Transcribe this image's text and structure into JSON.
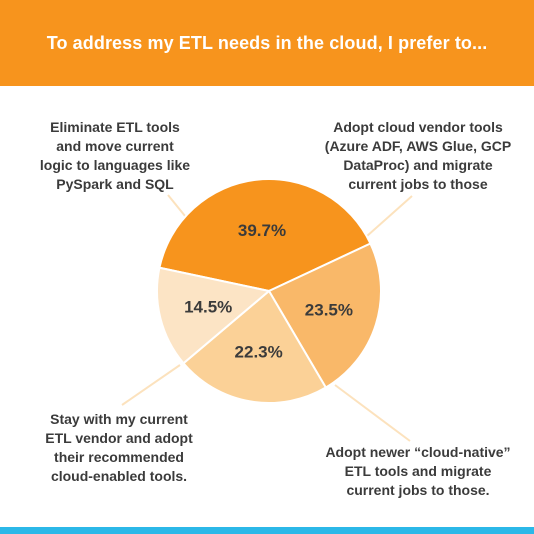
{
  "header": {
    "title": "To address my ETL needs in the cloud, I prefer to..."
  },
  "colors": {
    "header_bg": "#f7941d",
    "footer_band": "#2bb8e8",
    "leader_line": "#fce2bd",
    "pct_text": "#3b3b3b"
  },
  "chart_data": {
    "type": "pie",
    "title": "To address my ETL needs in the cloud, I prefer to...",
    "slices": [
      {
        "label_lines": [
          "Adopt cloud vendor tools",
          "(Azure ADF, AWS Glue, GCP",
          "DataProc) and migrate",
          "current jobs to those"
        ],
        "value": 39.7,
        "value_label": "39.7%",
        "color": "#f7941d"
      },
      {
        "label_lines": [
          "Adopt newer “cloud-native”",
          "ETL tools and migrate",
          "current jobs to those."
        ],
        "value": 23.5,
        "value_label": "23.5%",
        "color": "#f9b869"
      },
      {
        "label_lines": [
          "Stay with my current",
          "ETL vendor and adopt",
          "their recommended",
          "cloud-enabled tools."
        ],
        "value": 22.3,
        "value_label": "22.3%",
        "color": "#fbd197"
      },
      {
        "label_lines": [
          "Eliminate ETL tools",
          "and move current",
          "logic to languages like",
          "PySpark and SQL"
        ],
        "value": 14.5,
        "value_label": "14.5%",
        "color": "#fce4c5"
      }
    ]
  }
}
